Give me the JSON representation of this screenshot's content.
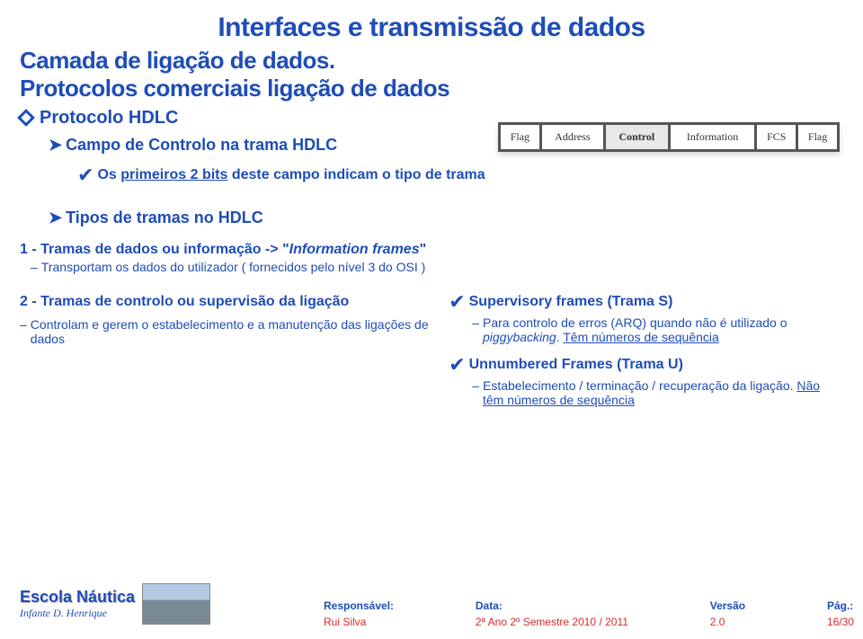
{
  "title": "Interfaces e transmissão de dados",
  "heading1": "Camada de ligação de dados.",
  "heading2": "Protocolos comerciais ligação de dados",
  "protocol": {
    "label": "Protocolo HDLC"
  },
  "control_field": {
    "label": "Campo de Controlo na trama HDLC"
  },
  "bits_indicate": {
    "prefix": "Os ",
    "ul": "primeiros 2 bits",
    "suffix": " deste campo indicam o tipo de trama"
  },
  "frame_types_title": "Tipos de tramas no HDLC",
  "frames1": {
    "title_prefix": "1 - Tramas de dados ou informação -> \"",
    "title_italic": "Information frames",
    "title_suffix": "\"",
    "sub": "Transportam os dados do utilizador ( fornecidos pelo nível 3 do OSI )"
  },
  "frames2": {
    "title": "2 - Tramas de controlo ou supervisão da ligação",
    "sub": "Controlam e gerem o estabelecimento e a manutenção das ligações de dados"
  },
  "supervisory": {
    "title": "Supervisory frames (Trama S)",
    "sub_prefix": "Para controlo de erros (ARQ) quando não é utilizado o ",
    "sub_italic": "piggybacking",
    "sub_dot": ". ",
    "sub_ul": "Têm números de sequência"
  },
  "unnumbered": {
    "title": "Unnumbered Frames (Trama U)",
    "sub_text": "Estabelecimento / terminação / recuperação  da ligação. ",
    "sub_ul": "Não têm números de sequência"
  },
  "frame_cells": [
    "Flag",
    "Address",
    "Control",
    "Information",
    "FCS",
    "Flag"
  ],
  "frame_cell_colors": [
    "#ffffff",
    "#ffffff",
    "#e8e8e8",
    "#ffffff",
    "#ffffff",
    "#ffffff"
  ],
  "frame_highlight_index": 2,
  "footer": {
    "logo_main": "Escola Náutica",
    "logo_sub": "Infante D. Henrique",
    "responsavel_label": "Responsável:",
    "responsavel_value": "Rui Silva",
    "data_label": "Data:",
    "data_value": "2ª Ano 2º Semestre 2010 / 2011",
    "versao_label": "Versão",
    "versao_value": "2.0",
    "pag_label": "Pág.:",
    "pag_value": "16/30"
  },
  "colors": {
    "primary": "#1e4db7",
    "accent_red": "#d82b2b",
    "background": "#ffffff"
  },
  "typography": {
    "title_fontsize": 30,
    "section_fontsize": 26,
    "body_fontsize": 16,
    "footer_fontsize": 12
  }
}
